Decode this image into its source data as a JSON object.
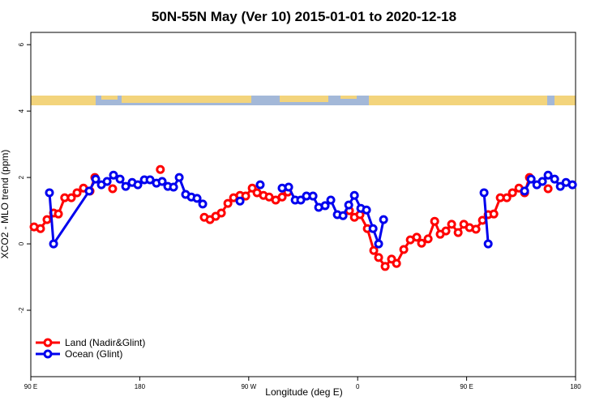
{
  "chart_data": {
    "type": "line",
    "title": "50N-55N May (Ver 10)   2015-01-01 to 2020-12-18",
    "x_label": "Longitude (deg E)",
    "y_label": "XCO2 - MLO trend (ppm)",
    "xlim": [
      90,
      540
    ],
    "xticks": [
      {
        "value": 90,
        "label": "90 E"
      },
      180,
      {
        "value": 270,
        "label": "90 W"
      },
      {
        "value": 360,
        "label": "0"
      },
      {
        "value": 450,
        "label": "90 E"
      },
      {
        "value": 540,
        "label": "180"
      }
    ],
    "ylim": [
      -4,
      6.37
    ],
    "yticks": [
      -2,
      0,
      2,
      4,
      6
    ],
    "legend": "bottom-left",
    "series": [
      {
        "name": "Land (Nadir&Glint)",
        "color": "#ff0000",
        "x": [
          92.7,
          98,
          103.4,
          108.8,
          112.8,
          118,
          123.5,
          128.2,
          133.5,
          138.9,
          142.9,
          null,
          157.6,
          null,
          197,
          null,
          233.3,
          238,
          242.7,
          247.4,
          252.8,
          257.5,
          262.8,
          267.5,
          272.9,
          276.9,
          282.2,
          286.9,
          292.3,
          297.6,
          302.3,
          null,
          353.2,
          357.3,
          361.9,
          368,
          373.3,
          377.3,
          382.7,
          388,
          392.1,
          398.1,
          403.5,
          408.8,
          412.8,
          418.2,
          423.6,
          428.2,
          432.9,
          437.6,
          443,
          447.7,
          452.4,
          457.7,
          463.1,
          467.8,
          472.5,
          477.8,
          483.2,
          487.9,
          493.2,
          497.9,
          501.9,
          null,
          517.3
        ],
        "values": [
          0.51,
          0.46,
          0.73,
          0.93,
          0.9,
          1.39,
          1.39,
          1.54,
          1.68,
          1.59,
          2.0,
          null,
          1.66,
          null,
          2.24,
          null,
          0.8,
          0.73,
          0.83,
          0.93,
          1.22,
          1.39,
          1.46,
          1.44,
          1.68,
          1.54,
          1.46,
          1.41,
          1.32,
          1.41,
          1.56,
          null,
          1.0,
          0.8,
          0.88,
          0.46,
          -0.2,
          -0.41,
          -0.68,
          -0.46,
          -0.59,
          -0.17,
          0.12,
          0.2,
          0.02,
          0.15,
          0.68,
          0.29,
          0.39,
          0.59,
          0.34,
          0.59,
          0.49,
          0.44,
          0.71,
          0.88,
          0.9,
          1.39,
          1.39,
          1.54,
          1.68,
          1.54,
          2.0,
          null,
          1.66
        ]
      },
      {
        "name": "Ocean (Glint)",
        "color": "#0000ee",
        "x": [
          105.4,
          108.8,
          138.2,
          143.6,
          148.3,
          153,
          158.3,
          163.7,
          168.4,
          173.7,
          178.4,
          183.8,
          188.5,
          193.8,
          198.5,
          203.2,
          207.9,
          212.6,
          217.9,
          222.6,
          227.3,
          232,
          null,
          262.8,
          null,
          279.5,
          null,
          297.6,
          303,
          308.4,
          313,
          317.7,
          323.1,
          327.8,
          333.1,
          337.8,
          343.2,
          347.9,
          352.6,
          357.3,
          362.6,
          367.3,
          372.7,
          377.3,
          381.4,
          null,
          464.4,
          467.8,
          null,
          497.9,
          503.3,
          508,
          512.6,
          517.3,
          522.7,
          527.4,
          532.1,
          537.4
        ],
        "values": [
          1.54,
          0.0,
          1.59,
          1.95,
          1.78,
          1.88,
          2.07,
          1.95,
          1.73,
          1.85,
          1.78,
          1.93,
          1.93,
          1.83,
          1.88,
          1.73,
          1.71,
          2.0,
          1.49,
          1.41,
          1.37,
          1.2,
          null,
          1.29,
          null,
          1.78,
          null,
          1.68,
          1.71,
          1.32,
          1.32,
          1.44,
          1.44,
          1.1,
          1.15,
          1.32,
          0.88,
          0.85,
          1.17,
          1.46,
          1.07,
          1.02,
          0.46,
          0.0,
          0.73,
          null,
          1.54,
          0.0,
          null,
          1.59,
          1.95,
          1.78,
          1.88,
          2.07,
          1.95,
          1.73,
          1.85,
          1.78
        ]
      }
    ]
  }
}
